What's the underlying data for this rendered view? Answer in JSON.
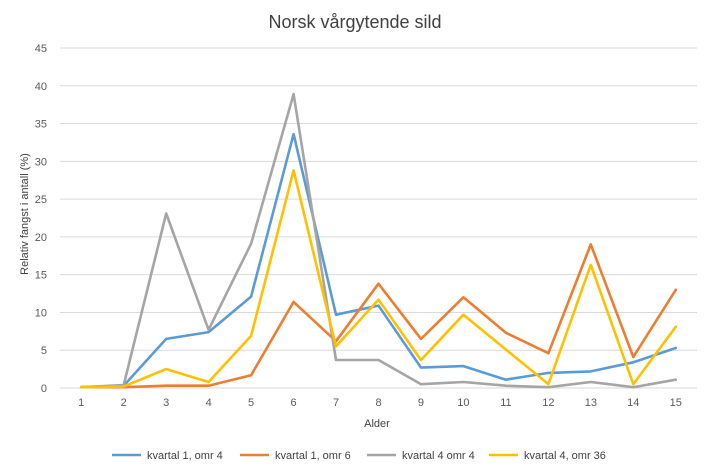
{
  "chart_data": {
    "type": "line",
    "title": "Norsk vårgytende sild",
    "xlabel": "Alder",
    "ylabel": "Relativ fangst i antall (%)",
    "ylim": [
      0,
      45
    ],
    "yticks": [
      0,
      5,
      10,
      15,
      20,
      25,
      30,
      35,
      40,
      45
    ],
    "categories": [
      "1",
      "2",
      "3",
      "4",
      "5",
      "6",
      "7",
      "8",
      "9",
      "10",
      "11",
      "12",
      "13",
      "14",
      "15"
    ],
    "grid": true,
    "legend": "bottom",
    "series": [
      {
        "name": "kvartal 1, omr 4",
        "color": "#5b9bd5",
        "values": [
          0.1,
          0.3,
          6.5,
          7.4,
          12.1,
          33.6,
          9.7,
          10.9,
          2.7,
          2.9,
          1.1,
          2.0,
          2.2,
          3.4,
          5.3
        ]
      },
      {
        "name": "kvartal 1, omr 6",
        "color": "#ed7d31",
        "values": [
          0.1,
          0.1,
          0.3,
          0.3,
          1.7,
          11.4,
          6.2,
          13.8,
          6.5,
          12.0,
          7.3,
          4.6,
          19.0,
          4.1,
          13.0
        ]
      },
      {
        "name": "kvartal 4 omr 4",
        "color": "#a5a5a5",
        "values": [
          0.1,
          0.4,
          23.1,
          7.7,
          19.1,
          38.9,
          3.7,
          3.7,
          0.5,
          0.8,
          0.3,
          0.1,
          0.8,
          0.1,
          1.1
        ]
      },
      {
        "name": "kvartal 4, omr 36",
        "color": "#ffc000",
        "values": [
          0.1,
          0.2,
          2.5,
          0.8,
          6.9,
          28.8,
          5.5,
          11.7,
          3.7,
          9.7,
          5.1,
          0.5,
          16.3,
          0.5,
          8.1
        ]
      }
    ]
  }
}
